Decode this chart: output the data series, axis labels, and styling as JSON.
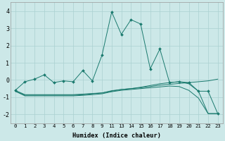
{
  "xlabel": "Humidex (Indice chaleur)",
  "bg_color": "#cce8e8",
  "grid_color": "#aad0d0",
  "line_color": "#1a7a6e",
  "ylim": [
    -2.5,
    4.5
  ],
  "x_tick_positions": [
    0,
    1,
    2,
    3,
    4,
    5,
    6,
    7,
    8,
    9,
    10,
    11,
    12,
    13,
    14,
    15,
    16,
    17,
    18,
    19,
    20,
    21
  ],
  "x_tick_labels": [
    "0",
    "1",
    "2",
    "3",
    "4",
    "5",
    "6",
    "7",
    "8",
    "9",
    "11",
    "13",
    "14",
    "15",
    "16",
    "17",
    "18",
    "19",
    "20",
    "21",
    "22",
    "23"
  ],
  "main_y": [
    -0.6,
    -0.1,
    0.05,
    0.3,
    -0.15,
    -0.05,
    -0.1,
    0.55,
    -0.05,
    1.45,
    3.95,
    2.65,
    3.5,
    3.25,
    0.65,
    1.8,
    -0.15,
    -0.1,
    -0.15,
    -0.65,
    -0.65,
    -1.95
  ],
  "line1_y": [
    -0.6,
    -0.85,
    -0.85,
    -0.85,
    -0.85,
    -0.85,
    -0.85,
    -0.82,
    -0.78,
    -0.75,
    -0.65,
    -0.55,
    -0.5,
    -0.45,
    -0.38,
    -0.3,
    -0.25,
    -0.2,
    -0.15,
    -0.1,
    -0.05,
    0.05
  ],
  "line2_y": [
    -0.65,
    -0.88,
    -0.88,
    -0.88,
    -0.88,
    -0.88,
    -0.88,
    -0.85,
    -0.8,
    -0.75,
    -0.62,
    -0.55,
    -0.5,
    -0.42,
    -0.32,
    -0.22,
    -0.15,
    -0.1,
    -0.22,
    -0.65,
    -1.95,
    -1.95
  ],
  "line3_y": [
    -0.65,
    -0.92,
    -0.92,
    -0.92,
    -0.92,
    -0.92,
    -0.92,
    -0.89,
    -0.85,
    -0.8,
    -0.68,
    -0.6,
    -0.55,
    -0.5,
    -0.45,
    -0.4,
    -0.35,
    -0.38,
    -0.6,
    -1.05,
    -1.95,
    -1.95
  ]
}
